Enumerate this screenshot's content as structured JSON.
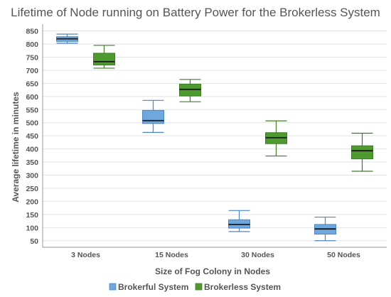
{
  "chart_data": {
    "type": "box",
    "title": "Lifetime of Node running on Battery Power for the Brokerless System",
    "xlabel": "Size of Fog Colony in Nodes",
    "ylabel": "Average lifetime in minutes",
    "categories": [
      "3 Nodes",
      "15 Nodes",
      "30 Nodes",
      "50 Nodes"
    ],
    "y_ticks": [
      50,
      100,
      150,
      200,
      250,
      300,
      350,
      400,
      450,
      500,
      550,
      600,
      650,
      700,
      750,
      800,
      850
    ],
    "ylim": [
      25,
      865
    ],
    "grid": true,
    "legend_position": "bottom",
    "series": [
      {
        "name": "Brokerful System",
        "color": "#6fa8dc",
        "border": "#4a86c8",
        "boxes": [
          {
            "min": 803,
            "q1": 810,
            "median": 820,
            "q3": 828,
            "max": 838
          },
          {
            "min": 463,
            "q1": 497,
            "median": 508,
            "q3": 547,
            "max": 585
          },
          {
            "min": 85,
            "q1": 98,
            "median": 112,
            "q3": 130,
            "max": 165
          },
          {
            "min": 50,
            "q1": 75,
            "median": 95,
            "q3": 112,
            "max": 140
          }
        ]
      },
      {
        "name": "Brokerless System",
        "color": "#4f9a2f",
        "border": "#3f7d25",
        "boxes": [
          {
            "min": 708,
            "q1": 720,
            "median": 733,
            "q3": 765,
            "max": 795
          },
          {
            "min": 580,
            "q1": 602,
            "median": 627,
            "q3": 647,
            "max": 665
          },
          {
            "min": 373,
            "q1": 420,
            "median": 443,
            "q3": 462,
            "max": 507
          },
          {
            "min": 315,
            "q1": 362,
            "median": 393,
            "q3": 412,
            "max": 460
          }
        ]
      }
    ]
  }
}
